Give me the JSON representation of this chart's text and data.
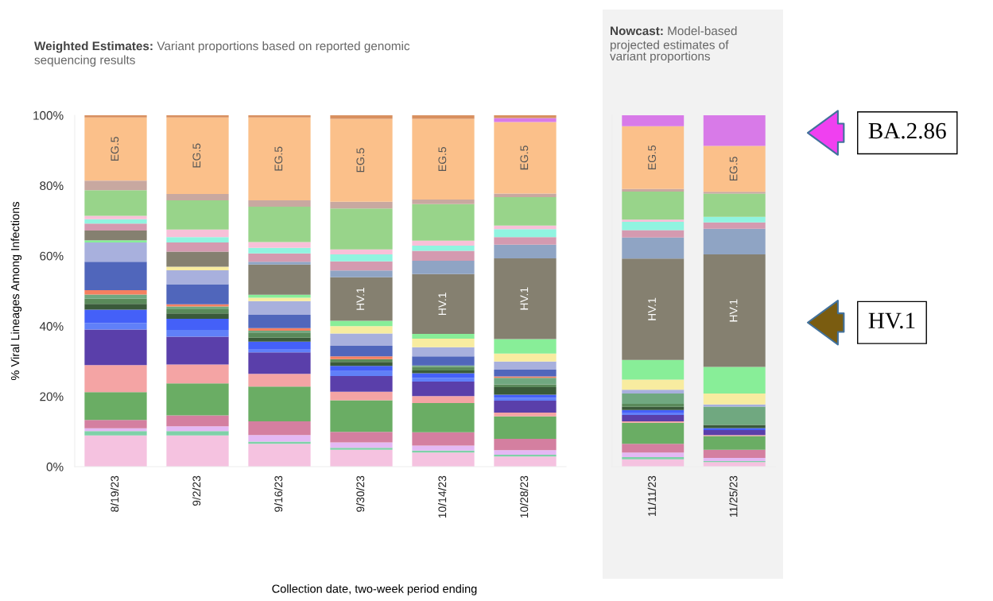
{
  "chart_data": [
    {
      "type": "bar",
      "stacked": true,
      "title": "Weighted Estimates: Variant proportions based on reported genomic sequencing results",
      "ylabel": "% Viral Lineages Among Infections",
      "xlabel": "Collection date, two-week period ending",
      "categories": [
        "8/19/23",
        "9/2/23",
        "9/16/23",
        "9/30/23",
        "10/14/23",
        "10/28/23"
      ],
      "ylim": [
        0,
        100
      ],
      "yticks": [
        {
          "value": 0,
          "label": "0%"
        },
        {
          "value": 20,
          "label": "20%"
        },
        {
          "value": 40,
          "label": "40%"
        },
        {
          "value": 60,
          "label": "60%"
        },
        {
          "value": 80,
          "label": "80%"
        },
        {
          "value": 100,
          "label": "100%"
        }
      ],
      "series": [
        {
          "color": "#f5c2e0",
          "values": [
            8.9,
            8.9,
            6.5,
            4.8,
            4.0,
            2.9
          ]
        },
        {
          "color": "#7fd1a8",
          "values": [
            1.2,
            1.2,
            0.6,
            0.6,
            0.6,
            0.5
          ]
        },
        {
          "color": "#e4b8f4",
          "values": [
            0.8,
            1.4,
            1.9,
            1.5,
            1.4,
            1.3
          ]
        },
        {
          "color": "#d47fa0",
          "values": [
            2.4,
            3.1,
            3.9,
            3.0,
            3.8,
            3.2
          ]
        },
        {
          "color": "#6aad64",
          "values": [
            7.9,
            9.1,
            9.9,
            9.0,
            8.3,
            6.4
          ]
        },
        {
          "color": "#f4a4a4",
          "values": [
            7.7,
            5.4,
            3.6,
            2.4,
            2.0,
            1.1
          ]
        },
        {
          "color": "#5a3faa",
          "values": [
            10.1,
            7.9,
            6.1,
            4.5,
            4.1,
            3.4
          ]
        },
        {
          "color": "#6080f8",
          "values": [
            1.9,
            1.9,
            0.8,
            1.4,
            1.1,
            0.8
          ]
        },
        {
          "color": "#4460f8",
          "values": [
            3.8,
            3.2,
            2.3,
            1.5,
            1.3,
            0.9
          ]
        },
        {
          "color": "#3a5a3a",
          "values": [
            1.6,
            1.5,
            1.1,
            1.1,
            0.8,
            2.1
          ]
        },
        {
          "color": "#5a8a5a",
          "values": [
            1.5,
            1.2,
            1.5,
            0.8,
            1.0,
            0.8
          ]
        },
        {
          "color": "#70a880",
          "values": [
            1.2,
            0.8,
            0.5,
            null,
            0.4,
            1.9
          ]
        },
        {
          "color": "#f48060",
          "values": [
            1.2,
            0.6,
            0.7,
            0.8,
            null,
            0.4
          ]
        },
        {
          "color": "#5066bb",
          "values": [
            8.1,
            5.7,
            3.8,
            3.0,
            2.6,
            1.9
          ]
        },
        {
          "color": "#a8b0dd",
          "values": [
            5.5,
            4.0,
            3.9,
            3.5,
            2.6,
            2.3
          ]
        },
        {
          "color": "#f8eca0",
          "values": [
            null,
            1.0,
            1.0,
            2.1,
            2.4,
            2.3
          ]
        },
        {
          "color": "#88ee98",
          "values": [
            0.6,
            null,
            0.8,
            1.5,
            1.4,
            4.1
          ]
        },
        {
          "name": "HV.1",
          "color": "#858070",
          "values": [
            2.8,
            4.3,
            8.6,
            12.4,
            17.0,
            23.0
          ]
        },
        {
          "color": "#8fa4c4",
          "values": [
            null,
            null,
            0.8,
            1.9,
            3.8,
            3.9
          ]
        },
        {
          "color": "#d49ab0",
          "values": [
            2.0,
            2.6,
            2.4,
            2.6,
            2.8,
            2.1
          ]
        },
        {
          "color": "#90f4e0",
          "values": [
            1.2,
            1.5,
            1.6,
            2.0,
            1.5,
            2.3
          ]
        },
        {
          "color": "#f8c0d8",
          "values": [
            1.0,
            2.2,
            1.6,
            1.4,
            1.4,
            1.0
          ]
        },
        {
          "color": "#98d48a",
          "values": [
            7.3,
            8.3,
            10.1,
            11.7,
            10.4,
            8.1
          ]
        },
        {
          "color": "#c8a8a0",
          "values": [
            2.7,
            1.8,
            1.8,
            1.9,
            1.3,
            1.0
          ]
        },
        {
          "name": "EG.5",
          "color": "#fbc08a",
          "values": [
            18.0,
            21.8,
            23.6,
            23.6,
            23.0,
            20.4
          ]
        },
        {
          "color": "#d87ae8",
          "values": [
            null,
            null,
            null,
            null,
            null,
            1.1
          ]
        },
        {
          "color": "#d89060",
          "values": [
            0.6,
            0.6,
            0.6,
            1.0,
            1.0,
            0.8
          ]
        }
      ]
    },
    {
      "type": "bar",
      "stacked": true,
      "title": "Nowcast: Model-based projected estimates of variant proportions",
      "categories": [
        "11/11/23",
        "11/25/23"
      ],
      "ylim": [
        0,
        100
      ],
      "tick_labels": "x",
      "annotations": [
        "BA.2.86",
        "HV.1"
      ],
      "series": [
        {
          "color": "#f5c2e0",
          "values": [
            2.1,
            1.3
          ]
        },
        {
          "color": "#7fd1a8",
          "values": [
            0.6,
            0.3
          ]
        },
        {
          "color": "#e4b8f4",
          "values": [
            1.3,
            0.9
          ]
        },
        {
          "color": "#d47fa0",
          "values": [
            2.5,
            2.3
          ]
        },
        {
          "color": "#6aad64",
          "values": [
            6.0,
            3.9
          ]
        },
        {
          "color": "#f4a4a4",
          "values": [
            0.4,
            0.3
          ]
        },
        {
          "color": "#5a3faa",
          "values": [
            1.8,
            1.4
          ]
        },
        {
          "color": "#6080f8",
          "values": [
            0.5,
            null
          ]
        },
        {
          "color": "#4460f8",
          "values": [
            0.9,
            0.6
          ]
        },
        {
          "color": "#3a5a3a",
          "values": [
            0.9,
            0.9
          ]
        },
        {
          "color": "#5a8a5a",
          "values": [
            0.9,
            null
          ]
        },
        {
          "color": "#70a880",
          "values": [
            2.9,
            5.2
          ]
        },
        {
          "color": "#a8b0dd",
          "values": [
            1.1,
            0.6
          ]
        },
        {
          "color": "#f8eca0",
          "values": [
            2.9,
            3.1
          ]
        },
        {
          "color": "#88ee98",
          "values": [
            5.6,
            7.6
          ]
        },
        {
          "name": "HV.1",
          "color": "#858070",
          "values": [
            28.8,
            32.0
          ]
        },
        {
          "color": "#8fa4c4",
          "values": [
            6.0,
            7.3
          ]
        },
        {
          "color": "#d49ab0",
          "values": [
            2.1,
            1.8
          ]
        },
        {
          "color": "#90f4e0",
          "values": [
            2.4,
            1.6
          ]
        },
        {
          "color": "#f8c0d8",
          "values": [
            0.6,
            null
          ]
        },
        {
          "color": "#98d48a",
          "values": [
            8.0,
            6.6
          ]
        },
        {
          "color": "#c8a8a0",
          "values": [
            0.7,
            0.5
          ]
        },
        {
          "name": "EG.5",
          "color": "#fbc08a",
          "values": [
            17.9,
            13.1
          ]
        },
        {
          "color": "#d87ae8",
          "values": [
            3.1,
            8.7
          ]
        }
      ]
    }
  ]
}
